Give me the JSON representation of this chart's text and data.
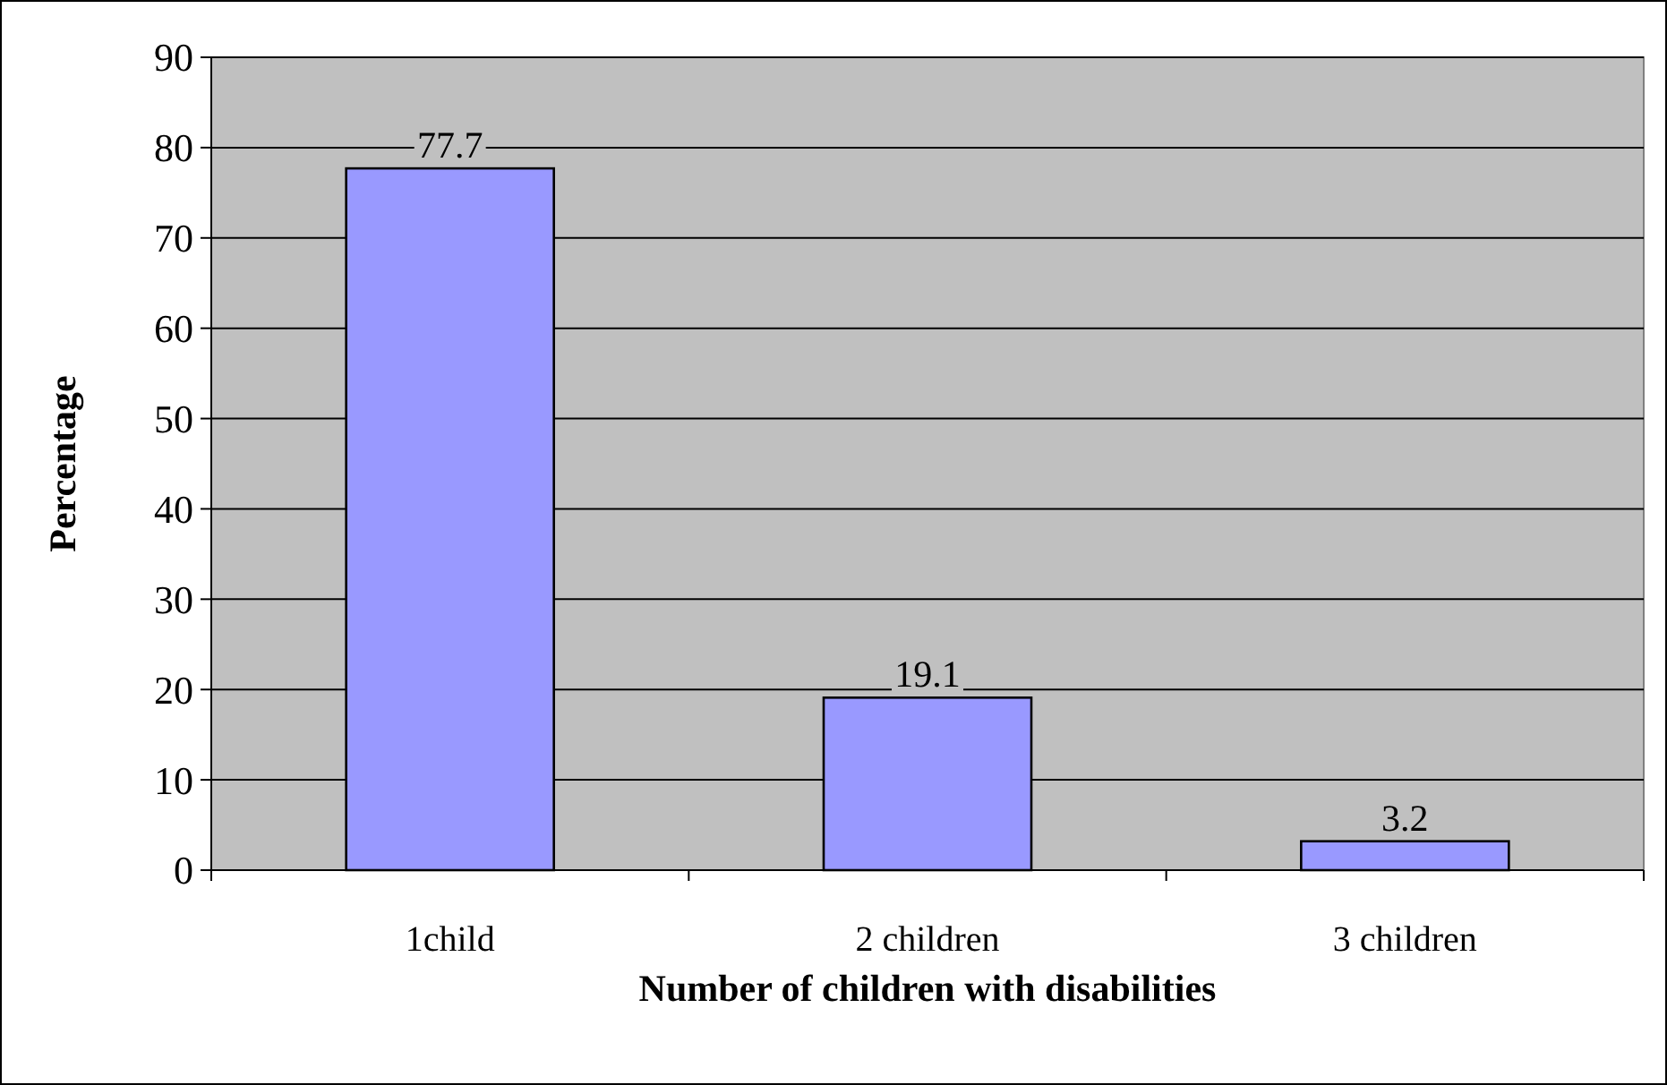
{
  "chart_data": {
    "type": "bar",
    "xlabel": "Number of children with disabilities",
    "ylabel": "Percentage",
    "categories": [
      "1child",
      "2 children",
      "3 children"
    ],
    "values": [
      77.7,
      19.1,
      3.2
    ],
    "color": "#9999ff",
    "ylim": [
      0,
      90
    ],
    "yticks": [
      0,
      10,
      20,
      30,
      40,
      50,
      60,
      70,
      80,
      90
    ],
    "grid": "y",
    "data_labels": true
  }
}
